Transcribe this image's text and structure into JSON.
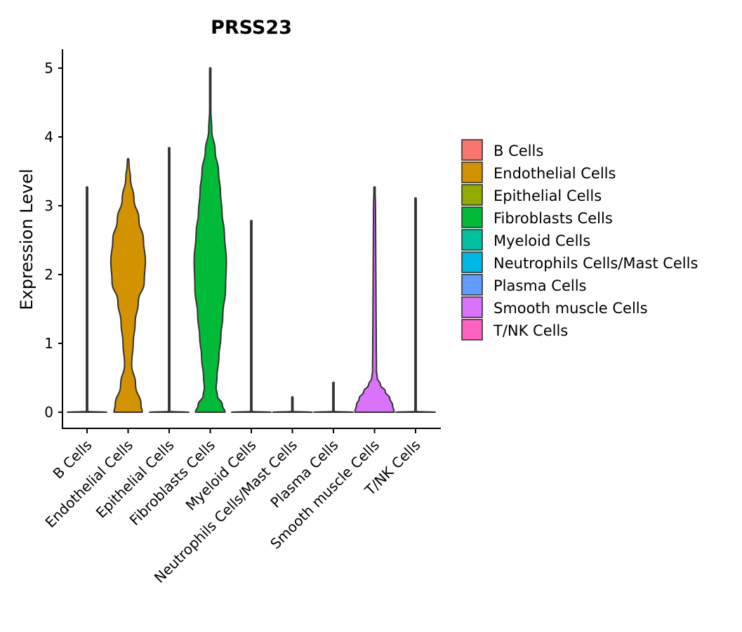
{
  "chart_data": {
    "type": "violin",
    "title": "PRSS23",
    "xlabel": "",
    "ylabel": "Expression Level",
    "ylim": [
      -0.25,
      5.25
    ],
    "yticks": [
      0,
      1,
      2,
      3,
      4,
      5
    ],
    "categories": [
      "B Cells",
      "Endothelial Cells",
      "Epithelial Cells",
      "Fibroblasts Cells",
      "Myeloid Cells",
      "Neutrophils Cells/Mast Cells",
      "Plasma Cells",
      "Smooth muscle Cells",
      "T/NK Cells"
    ],
    "series": [
      {
        "name": "B Cells",
        "color": "#F8766D",
        "max": 3.27,
        "profile": [
          [
            0,
            1.0
          ],
          [
            0.01,
            0.05
          ],
          [
            0.03,
            0.02
          ],
          [
            3.27,
            0.01
          ]
        ]
      },
      {
        "name": "Endothelial Cells",
        "color": "#D39200",
        "max": 3.68,
        "profile": [
          [
            0,
            0.72
          ],
          [
            0.1,
            0.66
          ],
          [
            0.4,
            0.38
          ],
          [
            0.7,
            0.18
          ],
          [
            1.0,
            0.26
          ],
          [
            1.3,
            0.36
          ],
          [
            1.6,
            0.52
          ],
          [
            1.9,
            0.82
          ],
          [
            2.2,
            0.88
          ],
          [
            2.5,
            0.78
          ],
          [
            2.8,
            0.55
          ],
          [
            3.1,
            0.3
          ],
          [
            3.4,
            0.12
          ],
          [
            3.6,
            0.05
          ],
          [
            3.68,
            0.01
          ]
        ]
      },
      {
        "name": "Epithelial Cells",
        "color": "#93AA00",
        "max": 3.84,
        "profile": [
          [
            0,
            1.0
          ],
          [
            0.01,
            0.05
          ],
          [
            0.03,
            0.02
          ],
          [
            3.84,
            0.01
          ]
        ]
      },
      {
        "name": "Fibroblasts Cells",
        "color": "#00BA38",
        "max": 5.0,
        "profile": [
          [
            0,
            0.75
          ],
          [
            0.1,
            0.62
          ],
          [
            0.25,
            0.36
          ],
          [
            0.35,
            0.3
          ],
          [
            0.5,
            0.34
          ],
          [
            0.8,
            0.44
          ],
          [
            1.1,
            0.54
          ],
          [
            1.4,
            0.64
          ],
          [
            1.8,
            0.78
          ],
          [
            2.2,
            0.82
          ],
          [
            2.6,
            0.72
          ],
          [
            2.9,
            0.6
          ],
          [
            3.2,
            0.52
          ],
          [
            3.5,
            0.42
          ],
          [
            3.8,
            0.25
          ],
          [
            4.1,
            0.08
          ],
          [
            4.4,
            0.03
          ],
          [
            5.0,
            0.01
          ]
        ]
      },
      {
        "name": "Myeloid Cells",
        "color": "#00C19F",
        "max": 2.78,
        "profile": [
          [
            0,
            1.0
          ],
          [
            0.01,
            0.05
          ],
          [
            0.03,
            0.02
          ],
          [
            2.78,
            0.01
          ]
        ]
      },
      {
        "name": "Neutrophils Cells/Mast Cells",
        "color": "#00B9E3",
        "max": 0.22,
        "profile": [
          [
            0,
            1.0
          ],
          [
            0.01,
            0.05
          ],
          [
            0.03,
            0.02
          ],
          [
            0.22,
            0.01
          ]
        ]
      },
      {
        "name": "Plasma Cells",
        "color": "#619CFF",
        "max": 0.43,
        "profile": [
          [
            0,
            1.0
          ],
          [
            0.01,
            0.05
          ],
          [
            0.03,
            0.02
          ],
          [
            0.43,
            0.01
          ]
        ]
      },
      {
        "name": "Smooth muscle Cells",
        "color": "#DB72FB",
        "max": 3.27,
        "profile": [
          [
            0,
            1.0
          ],
          [
            0.1,
            0.92
          ],
          [
            0.2,
            0.78
          ],
          [
            0.3,
            0.55
          ],
          [
            0.4,
            0.3
          ],
          [
            0.5,
            0.14
          ],
          [
            0.6,
            0.1
          ],
          [
            1.0,
            0.09
          ],
          [
            1.5,
            0.08
          ],
          [
            2.0,
            0.07
          ],
          [
            2.5,
            0.06
          ],
          [
            3.0,
            0.05
          ],
          [
            3.2,
            0.03
          ],
          [
            3.27,
            0.01
          ]
        ]
      },
      {
        "name": "T/NK Cells",
        "color": "#FF61C3",
        "max": 3.11,
        "profile": [
          [
            0,
            1.0
          ],
          [
            0.01,
            0.05
          ],
          [
            0.03,
            0.02
          ],
          [
            3.11,
            0.01
          ]
        ]
      }
    ],
    "legend": {
      "position": "right"
    }
  }
}
